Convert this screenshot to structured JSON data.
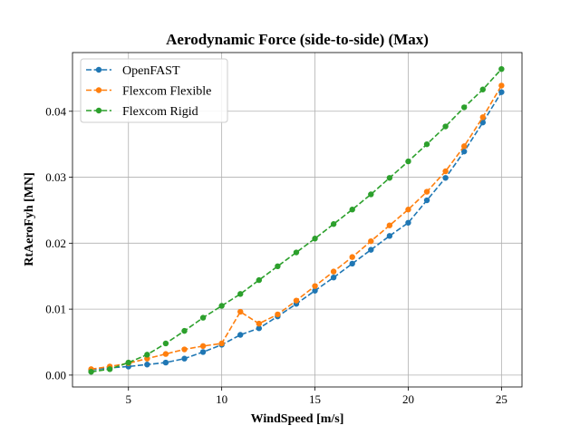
{
  "chart_data": {
    "type": "line",
    "title": "Aerodynamic Force (side-to-side) (Max)",
    "xlabel": "WindSpeed [m/s]",
    "ylabel": "RtAeroFyh [MN]",
    "xlim": [
      2.0,
      26.1
    ],
    "ylim": [
      -0.0018,
      0.0489
    ],
    "xticks": [
      5,
      10,
      15,
      20,
      25
    ],
    "xtick_labels": [
      "5",
      "10",
      "15",
      "20",
      "25"
    ],
    "yticks": [
      0.0,
      0.01,
      0.02,
      0.03,
      0.04
    ],
    "ytick_labels": [
      "0.00",
      "0.01",
      "0.02",
      "0.03",
      "0.04"
    ],
    "grid": true,
    "legend_position": "top-left",
    "x": [
      3,
      4,
      5,
      6,
      7,
      8,
      9,
      10,
      11,
      12,
      13,
      14,
      15,
      16,
      17,
      18,
      19,
      20,
      21,
      22,
      23,
      24,
      25
    ],
    "series": [
      {
        "name": "OpenFAST",
        "color": "#1f77b4",
        "line_style": "dashed",
        "marker": "circle",
        "values": [
          0.0008,
          0.0011,
          0.0013,
          0.0016,
          0.0019,
          0.0025,
          0.0035,
          0.0046,
          0.0061,
          0.0071,
          0.0089,
          0.0108,
          0.0128,
          0.0148,
          0.0169,
          0.019,
          0.0211,
          0.0231,
          0.0265,
          0.0299,
          0.0339,
          0.0383,
          0.0429
        ]
      },
      {
        "name": "Flexcom Flexible",
        "color": "#ff7f0e",
        "line_style": "dashed",
        "marker": "circle",
        "values": [
          0.0009,
          0.0013,
          0.0018,
          0.0025,
          0.0032,
          0.0039,
          0.0044,
          0.0048,
          0.0096,
          0.0078,
          0.0092,
          0.0113,
          0.0135,
          0.0157,
          0.0179,
          0.0203,
          0.0227,
          0.0251,
          0.0278,
          0.0309,
          0.0347,
          0.0391,
          0.0439
        ]
      },
      {
        "name": "Flexcom Rigid",
        "color": "#2ca02c",
        "line_style": "dashed",
        "marker": "circle",
        "values": [
          0.0005,
          0.0009,
          0.0019,
          0.0031,
          0.0048,
          0.0067,
          0.0087,
          0.0105,
          0.0123,
          0.0144,
          0.0165,
          0.0186,
          0.0207,
          0.0229,
          0.0251,
          0.0274,
          0.0299,
          0.0324,
          0.035,
          0.0377,
          0.0406,
          0.0433,
          0.0464
        ]
      }
    ]
  }
}
